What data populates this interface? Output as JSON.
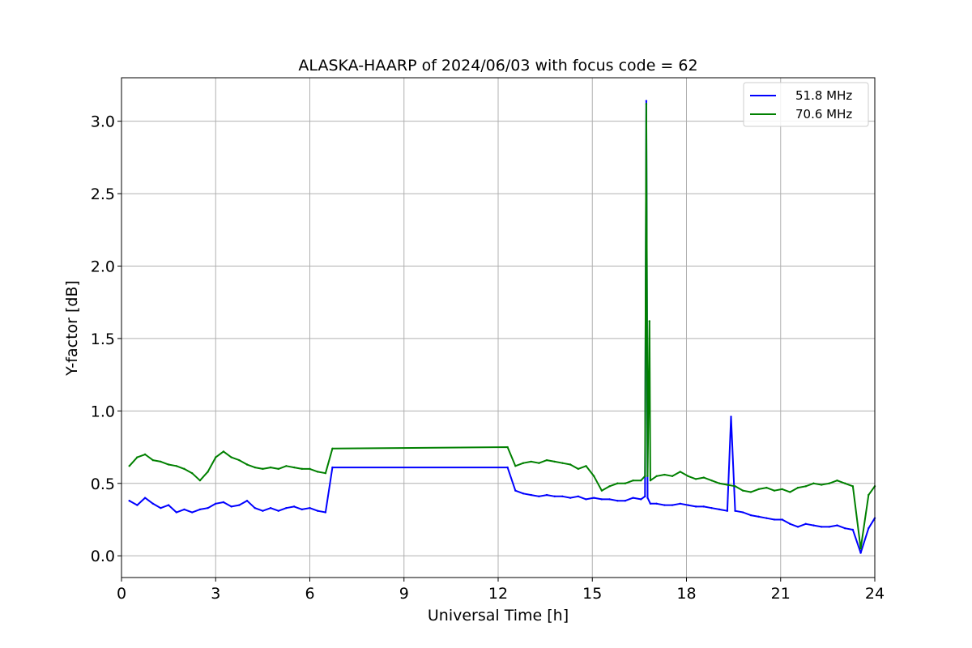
{
  "chart_data": {
    "type": "line",
    "title": "ALASKA-HAARP of 2024/06/03 with focus code = 62",
    "xlabel": "Universal Time [h]",
    "ylabel": "Y-factor [dB]",
    "xlim": [
      0,
      24
    ],
    "ylim": [
      -0.15,
      3.3
    ],
    "xticks": [
      0,
      3,
      6,
      9,
      12,
      15,
      18,
      21,
      24
    ],
    "xtick_labels": [
      "0",
      "3",
      "6",
      "9",
      "12",
      "15",
      "18",
      "21",
      "24"
    ],
    "yticks": [
      0.0,
      0.5,
      1.0,
      1.5,
      2.0,
      2.5,
      3.0
    ],
    "ytick_labels": [
      "0.0",
      "0.5",
      "1.0",
      "1.5",
      "2.0",
      "2.5",
      "3.0"
    ],
    "grid": true,
    "legend_position": "top-right",
    "series": [
      {
        "name": "51.8 MHz",
        "color": "#0000ff",
        "x": [
          0.25,
          0.5,
          0.75,
          1.0,
          1.25,
          1.5,
          1.75,
          2.0,
          2.25,
          2.5,
          2.75,
          3.0,
          3.25,
          3.5,
          3.75,
          4.0,
          4.25,
          4.5,
          4.75,
          5.0,
          5.25,
          5.5,
          5.75,
          6.0,
          6.25,
          6.5,
          6.72,
          12.3,
          12.55,
          12.8,
          13.05,
          13.3,
          13.55,
          13.8,
          14.05,
          14.3,
          14.55,
          14.8,
          15.05,
          15.3,
          15.55,
          15.8,
          16.05,
          16.3,
          16.55,
          16.68,
          16.72,
          16.76,
          16.85,
          17.05,
          17.3,
          17.55,
          17.8,
          18.05,
          18.3,
          18.55,
          18.8,
          19.05,
          19.3,
          19.42,
          19.55,
          19.8,
          20.05,
          20.3,
          20.55,
          20.8,
          21.05,
          21.3,
          21.55,
          21.8,
          22.05,
          22.3,
          22.55,
          22.8,
          23.05,
          23.3,
          23.55,
          23.8,
          24.0
        ],
        "y": [
          0.38,
          0.35,
          0.4,
          0.36,
          0.33,
          0.35,
          0.3,
          0.32,
          0.3,
          0.32,
          0.33,
          0.36,
          0.37,
          0.34,
          0.35,
          0.38,
          0.33,
          0.31,
          0.33,
          0.31,
          0.33,
          0.34,
          0.32,
          0.33,
          0.31,
          0.3,
          0.61,
          0.61,
          0.45,
          0.43,
          0.42,
          0.41,
          0.42,
          0.41,
          0.41,
          0.4,
          0.41,
          0.39,
          0.4,
          0.39,
          0.39,
          0.38,
          0.38,
          0.4,
          0.39,
          0.41,
          3.14,
          0.4,
          0.36,
          0.36,
          0.35,
          0.35,
          0.36,
          0.35,
          0.34,
          0.34,
          0.33,
          0.32,
          0.31,
          0.96,
          0.31,
          0.3,
          0.28,
          0.27,
          0.26,
          0.25,
          0.25,
          0.22,
          0.2,
          0.22,
          0.21,
          0.2,
          0.2,
          0.21,
          0.19,
          0.18,
          0.02,
          0.19,
          0.26
        ]
      },
      {
        "name": "70.6 MHz",
        "color": "#008000",
        "x": [
          0.25,
          0.5,
          0.75,
          1.0,
          1.25,
          1.5,
          1.75,
          2.0,
          2.25,
          2.5,
          2.75,
          3.0,
          3.25,
          3.5,
          3.75,
          4.0,
          4.25,
          4.5,
          4.75,
          5.0,
          5.25,
          5.5,
          5.75,
          6.0,
          6.25,
          6.5,
          6.72,
          12.3,
          12.55,
          12.8,
          13.05,
          13.3,
          13.55,
          13.8,
          14.05,
          14.3,
          14.55,
          14.8,
          15.05,
          15.3,
          15.55,
          15.8,
          16.05,
          16.3,
          16.55,
          16.68,
          16.72,
          16.76,
          16.82,
          16.85,
          17.05,
          17.3,
          17.55,
          17.8,
          18.05,
          18.3,
          18.55,
          18.8,
          19.05,
          19.3,
          19.55,
          19.8,
          20.05,
          20.3,
          20.55,
          20.8,
          21.05,
          21.3,
          21.55,
          21.8,
          22.05,
          22.3,
          22.55,
          22.8,
          23.05,
          23.3,
          23.55,
          23.8,
          24.0
        ],
        "y": [
          0.62,
          0.68,
          0.7,
          0.66,
          0.65,
          0.63,
          0.62,
          0.6,
          0.57,
          0.52,
          0.58,
          0.68,
          0.72,
          0.68,
          0.66,
          0.63,
          0.61,
          0.6,
          0.61,
          0.6,
          0.62,
          0.61,
          0.6,
          0.6,
          0.58,
          0.57,
          0.74,
          0.75,
          0.62,
          0.64,
          0.65,
          0.64,
          0.66,
          0.65,
          0.64,
          0.63,
          0.6,
          0.62,
          0.55,
          0.45,
          0.48,
          0.5,
          0.5,
          0.52,
          0.52,
          0.55,
          3.12,
          0.55,
          1.62,
          0.52,
          0.55,
          0.56,
          0.55,
          0.58,
          0.55,
          0.53,
          0.54,
          0.52,
          0.5,
          0.49,
          0.48,
          0.45,
          0.44,
          0.46,
          0.47,
          0.45,
          0.46,
          0.44,
          0.47,
          0.48,
          0.5,
          0.49,
          0.5,
          0.52,
          0.5,
          0.48,
          0.05,
          0.42,
          0.48
        ]
      }
    ]
  }
}
